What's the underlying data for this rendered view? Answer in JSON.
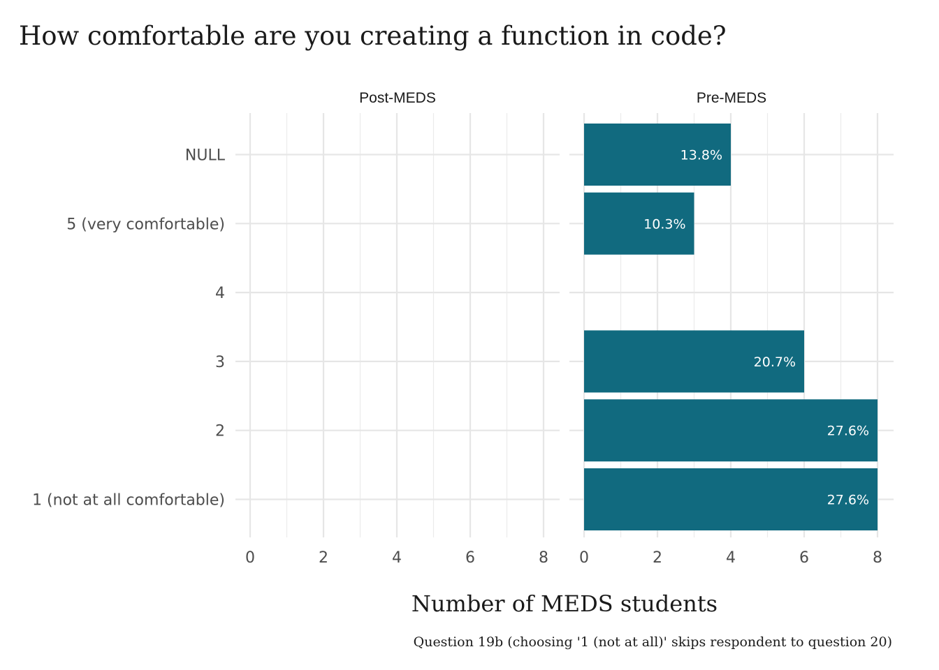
{
  "chart_data": {
    "type": "bar",
    "orientation": "horizontal",
    "title": "How comfortable are you creating a function in code?",
    "xlabel": "Number of MEDS students",
    "caption": "Question 19b (choosing '1 (not at all)' skips respondent to question 20)",
    "categories": [
      "NULL",
      "5 (very comfortable)",
      "4",
      "3",
      "2",
      "1 (not at all comfortable)"
    ],
    "xlim": [
      0,
      8.4
    ],
    "x_ticks": [
      "0",
      "2",
      "4",
      "6",
      "8"
    ],
    "grid": true,
    "bar_color": "#116A7F",
    "label_color": "#ffffff",
    "facets": [
      {
        "name": "Post-MEDS",
        "values": [
          0,
          0,
          0,
          0,
          0,
          0
        ],
        "labels": [
          "",
          "",
          "",
          "",
          "",
          ""
        ]
      },
      {
        "name": "Pre-MEDS",
        "values": [
          4,
          3,
          0,
          6,
          8,
          8
        ],
        "labels": [
          "13.8%",
          "10.3%",
          "",
          "20.7%",
          "27.6%",
          "27.6%"
        ]
      }
    ]
  }
}
